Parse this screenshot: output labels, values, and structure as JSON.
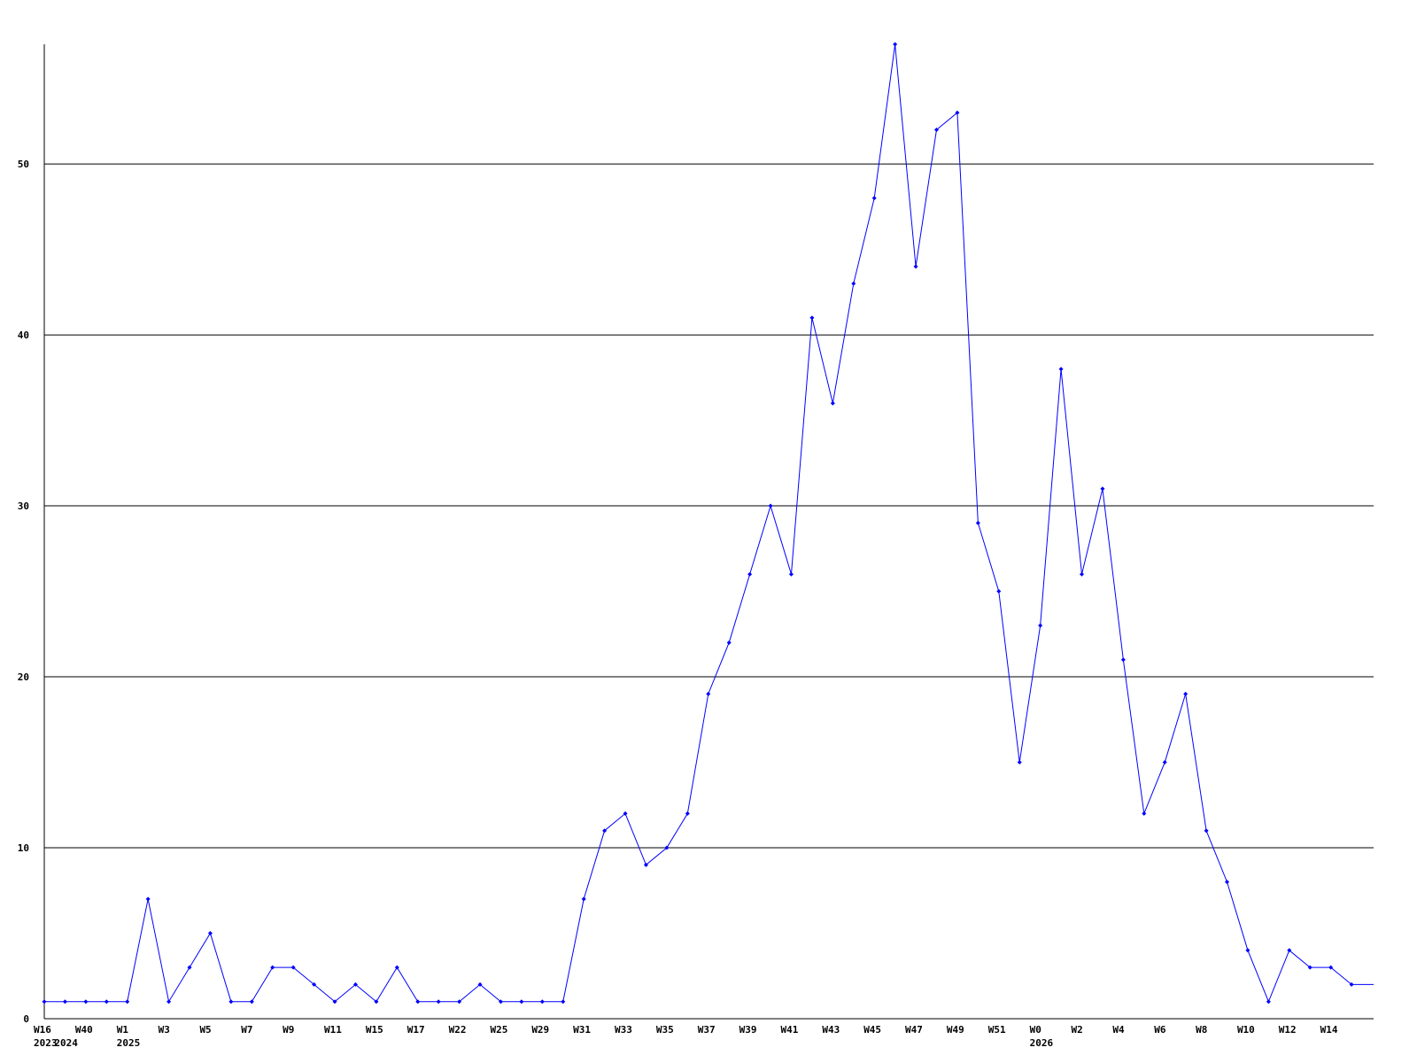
{
  "chart_data": {
    "type": "line",
    "title": "",
    "xlabel": "",
    "ylabel": "",
    "ylim": [
      0,
      57
    ],
    "yticks": [
      "0",
      "10",
      "20",
      "30",
      "40",
      "50"
    ],
    "ytick_values": [
      0,
      10,
      20,
      30,
      40,
      50
    ],
    "grid": "horizontal",
    "legend": "none",
    "line_color": "#0000ff",
    "grid_color": "#000000",
    "x_tick_labels": [
      "W16",
      "",
      "W40",
      "",
      "W1",
      "",
      "W3",
      "",
      "W5",
      "",
      "W7",
      "",
      "W9",
      "",
      "W11",
      "",
      "W15",
      "",
      "W17",
      "",
      "W22",
      "",
      "W25",
      "",
      "W29",
      "",
      "W31",
      "",
      "W33",
      "",
      "W35",
      "",
      "W37",
      "",
      "W39",
      "",
      "W41",
      "",
      "W43",
      "",
      "W45",
      "",
      "W47",
      "",
      "W49",
      "",
      "W51",
      "",
      "W0",
      "",
      "W2",
      "",
      "W4",
      "",
      "W6",
      "",
      "W8",
      "",
      "W10",
      "",
      "W12",
      "",
      "W14",
      ""
    ],
    "year_labels": [
      {
        "index": 0,
        "label": "2023"
      },
      {
        "index": 1,
        "label": "2024"
      },
      {
        "index": 4,
        "label": "2025"
      },
      {
        "index": 48,
        "label": "2026"
      }
    ],
    "series": [
      {
        "values": [
          1,
          1,
          1,
          1,
          1,
          7,
          1,
          3,
          5,
          1,
          1,
          3,
          3,
          2,
          1,
          2,
          1,
          3,
          1,
          1,
          1,
          2,
          1,
          1,
          1,
          1,
          7,
          11,
          12,
          9,
          10,
          12,
          19,
          22,
          26,
          30,
          26,
          41,
          36,
          43,
          48,
          57,
          44,
          52,
          53,
          29,
          25,
          15,
          23,
          38,
          26,
          31,
          21,
          12,
          15,
          19,
          11,
          8,
          4,
          1,
          4,
          3,
          3,
          2
        ]
      }
    ]
  }
}
